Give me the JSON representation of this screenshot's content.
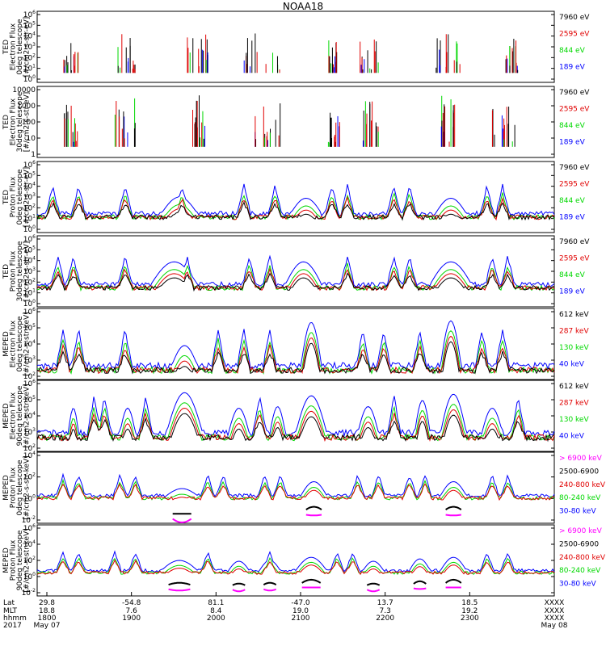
{
  "title": "NOAA18",
  "colors": {
    "black": "#000000",
    "red": "#e00000",
    "green": "#00d800",
    "blue": "#0000ff",
    "magenta": "#ff00ff"
  },
  "chart_data": [
    {
      "type": "line",
      "panel": "ted-electron-0deg",
      "ylabel": [
        "TED",
        "Electron Flux",
        "0deg telescope",
        "[#/cm2-s-str-eV]"
      ],
      "yticks": [
        "10^0",
        "10^1",
        "10^2",
        "10^3",
        "10^4",
        "10^5",
        "10^6"
      ],
      "ylim_log10": [
        0,
        6
      ],
      "legend": [
        {
          "label": "7960 eV",
          "color": "black"
        },
        {
          "label": "2595 eV",
          "color": "red"
        },
        {
          "label": "844 eV",
          "color": "green"
        },
        {
          "label": "189 eV",
          "color": "blue"
        }
      ],
      "style": "bursts",
      "base": 1.0,
      "bursts": [
        [
          0.05,
          0.08,
          2.5
        ],
        [
          0.15,
          0.19,
          3
        ],
        [
          0.29,
          0.33,
          3
        ],
        [
          0.4,
          0.47,
          3
        ],
        [
          0.56,
          0.58,
          2.5
        ],
        [
          0.62,
          0.66,
          2.5
        ],
        [
          0.77,
          0.82,
          3
        ],
        [
          0.9,
          0.93,
          2.5
        ]
      ]
    },
    {
      "type": "line",
      "panel": "ted-electron-30deg",
      "ylabel": [
        "TED",
        "Electron Flux",
        "30deg telescope",
        "[#/cm2-s-str-eV]"
      ],
      "yticks": [
        "1",
        "10",
        "100",
        "1000",
        "10000"
      ],
      "ylim_log10": [
        0,
        4
      ],
      "legend": [
        {
          "label": "7960 eV",
          "color": "black"
        },
        {
          "label": "2595 eV",
          "color": "red"
        },
        {
          "label": "844 eV",
          "color": "green"
        },
        {
          "label": "189 eV",
          "color": "blue"
        }
      ],
      "style": "bursts",
      "base": 0.8,
      "bursts": [
        [
          0.05,
          0.08,
          2
        ],
        [
          0.15,
          0.19,
          2.5
        ],
        [
          0.3,
          0.33,
          2.5
        ],
        [
          0.42,
          0.47,
          2
        ],
        [
          0.56,
          0.59,
          2
        ],
        [
          0.63,
          0.66,
          2
        ],
        [
          0.78,
          0.82,
          2.5
        ],
        [
          0.88,
          0.93,
          2
        ]
      ]
    },
    {
      "type": "line",
      "panel": "ted-proton-0deg",
      "ylabel": [
        "TED",
        "Proton Flux",
        "0deg telescope",
        "[#/cm2-s-str-eV]"
      ],
      "yticks": [
        "10^0",
        "10^1",
        "10^2",
        "10^3",
        "10^4",
        "10^5",
        "10^6"
      ],
      "ylim_log10": [
        0,
        6
      ],
      "legend": [
        {
          "label": "7960 eV",
          "color": "black"
        },
        {
          "label": "2595 eV",
          "color": "red"
        },
        {
          "label": "844 eV",
          "color": "green"
        },
        {
          "label": "189 eV",
          "color": "blue"
        }
      ],
      "style": "proton",
      "base": 1.3,
      "arches": [
        [
          0.24,
          0.31,
          2.7
        ],
        [
          0.49,
          0.55,
          2.6
        ],
        [
          0.77,
          0.83,
          2.6
        ]
      ],
      "spikes": [
        0.03,
        0.08,
        0.17,
        0.28,
        0.4,
        0.46,
        0.57,
        0.6,
        0.69,
        0.72,
        0.87,
        0.9
      ]
    },
    {
      "type": "line",
      "panel": "ted-proton-30deg",
      "ylabel": [
        "TED",
        "Proton Flux",
        "30deg telescope",
        "[#/cm2-s-str-eV]"
      ],
      "yticks": [
        "10^0",
        "10^1",
        "10^2",
        "10^3",
        "10^4",
        "10^5",
        "10^6"
      ],
      "ylim_log10": [
        0,
        6
      ],
      "legend": [
        {
          "label": "7960 eV",
          "color": "black"
        },
        {
          "label": "2595 eV",
          "color": "red"
        },
        {
          "label": "844 eV",
          "color": "green"
        },
        {
          "label": "189 eV",
          "color": "blue"
        }
      ],
      "style": "proton",
      "base": 1.6,
      "arches": [
        [
          0.22,
          0.31,
          3.5
        ],
        [
          0.48,
          0.55,
          3.5
        ],
        [
          0.76,
          0.84,
          3.5
        ]
      ],
      "spikes": [
        0.04,
        0.07,
        0.17,
        0.29,
        0.41,
        0.45,
        0.6,
        0.69,
        0.72,
        0.88,
        0.91
      ]
    },
    {
      "type": "line",
      "panel": "meped-electron-0deg",
      "ylabel": [
        "MEPED",
        "Electron Flux",
        "0deg telescope",
        "[#/cm2-s-str-keV]"
      ],
      "yticks": [
        "10^2",
        "10^3",
        "10^4",
        "10^5",
        "10^6"
      ],
      "ylim_log10": [
        2,
        6.6
      ],
      "legend": [
        {
          "label": "612 keV",
          "color": "black"
        },
        {
          "label": "287 keV",
          "color": "red"
        },
        {
          "label": "130 keV",
          "color": "green"
        },
        {
          "label": "40 keV",
          "color": "blue"
        }
      ],
      "style": "meped_e",
      "base": 2.6,
      "arches": [
        [
          0.26,
          0.31,
          3.9
        ],
        [
          0.51,
          0.55,
          5.4
        ],
        [
          0.78,
          0.82,
          5.5
        ]
      ],
      "spikes": [
        0.05,
        0.08,
        0.17,
        0.35,
        0.4,
        0.45,
        0.63,
        0.67,
        0.74,
        0.86,
        0.9
      ]
    },
    {
      "type": "line",
      "panel": "meped-electron-90deg",
      "ylabel": [
        "MEPED",
        "Electron Flux",
        "90deg telescope",
        "[#/cm2-s-str-keV]"
      ],
      "yticks": [
        "10^2",
        "10^3",
        "10^4",
        "10^5",
        "10^6"
      ],
      "ylim_log10": [
        2,
        6.6
      ],
      "legend": [
        {
          "label": "612 keV",
          "color": "black"
        },
        {
          "label": "287 keV",
          "color": "red"
        },
        {
          "label": "130 keV",
          "color": "green"
        },
        {
          "label": "40 keV",
          "color": "blue"
        }
      ],
      "style": "meped_e",
      "base": 2.9,
      "arches": [
        [
          0.06,
          0.08,
          4.5
        ],
        [
          0.16,
          0.19,
          4.5
        ],
        [
          0.25,
          0.32,
          5.5
        ],
        [
          0.37,
          0.41,
          4.5
        ],
        [
          0.45,
          0.48,
          4.6
        ],
        [
          0.5,
          0.56,
          5.3
        ],
        [
          0.62,
          0.66,
          4.6
        ],
        [
          0.73,
          0.76,
          5
        ],
        [
          0.78,
          0.83,
          5.4
        ],
        [
          0.86,
          0.9,
          4.5
        ]
      ],
      "spikes": [
        0.11,
        0.13,
        0.21,
        0.43,
        0.69,
        0.93
      ]
    },
    {
      "type": "line",
      "panel": "meped-proton-0deg",
      "ylabel": [
        "MEPED",
        "Proton Flux",
        "0deg telescope",
        "[#/cm2-s-str-keV]"
      ],
      "yticks": [
        "10^-2",
        "10^0",
        "10^2",
        "10^4"
      ],
      "ylim_log10": [
        -2.7,
        5.5
      ],
      "legend": [
        {
          "label": "> 6900 keV",
          "color": "magenta"
        },
        {
          "label": "2500-6900",
          "color": "black"
        },
        {
          "label": "240-800 keV",
          "color": "red"
        },
        {
          "label": "80-240 keV",
          "color": "green"
        },
        {
          "label": "30-80 keV",
          "color": "blue"
        }
      ],
      "style": "meped_p",
      "base": 0.2,
      "arches": [
        [
          0.25,
          0.31,
          1
        ],
        [
          0.51,
          0.56,
          1.8
        ],
        [
          0.78,
          0.83,
          1.8
        ]
      ],
      "spikes": [
        0.05,
        0.08,
        0.16,
        0.19,
        0.33,
        0.36,
        0.44,
        0.47,
        0.62,
        0.66,
        0.72,
        0.75,
        0.88,
        0.91
      ]
    },
    {
      "type": "line",
      "panel": "meped-proton-90deg",
      "ylabel": [
        "MEPED",
        "Proton Flux",
        "90deg telescope",
        "[#/cm2-s-str-keV]"
      ],
      "yticks": [
        "10^-2",
        "10^0",
        "10^2",
        "10^4",
        "10^6"
      ],
      "ylim_log10": [
        -2.7,
        6.5
      ],
      "legend": [
        {
          "label": "> 6900 keV",
          "color": "magenta"
        },
        {
          "label": "2500-6900",
          "color": "black"
        },
        {
          "label": "240-800 keV",
          "color": "red"
        },
        {
          "label": "80-240 keV",
          "color": "green"
        },
        {
          "label": "30-80 keV",
          "color": "blue"
        }
      ],
      "style": "meped_p",
      "base": 0.3,
      "arches": [
        [
          0.24,
          0.31,
          1.6
        ],
        [
          0.37,
          0.41,
          1.5
        ],
        [
          0.43,
          0.47,
          1.6
        ],
        [
          0.5,
          0.56,
          2
        ],
        [
          0.63,
          0.67,
          1.5
        ],
        [
          0.72,
          0.76,
          1.8
        ],
        [
          0.78,
          0.83,
          2
        ]
      ],
      "spikes": [
        0.05,
        0.08,
        0.15,
        0.19,
        0.33,
        0.45,
        0.58,
        0.61,
        0.87,
        0.91
      ]
    }
  ],
  "xaxis": {
    "row_labels": [
      "Lat",
      "MLT",
      "hhmm",
      "2017"
    ],
    "ticks": [
      {
        "lat": "29.8",
        "mlt": "18.8",
        "hhmm": "1800",
        "date": "May 07"
      },
      {
        "lat": "-54.8",
        "mlt": "7.6",
        "hhmm": "1900",
        "date": ""
      },
      {
        "lat": "81.1",
        "mlt": "8.4",
        "hhmm": "2000",
        "date": ""
      },
      {
        "lat": "-47.0",
        "mlt": "19.0",
        "hhmm": "2100",
        "date": ""
      },
      {
        "lat": "13.7",
        "mlt": "7.3",
        "hhmm": "2200",
        "date": ""
      },
      {
        "lat": "18.5",
        "mlt": "19.2",
        "hhmm": "2300",
        "date": ""
      },
      {
        "lat": "XXXX",
        "mlt": "XXXX",
        "hhmm": "XXXX",
        "date": "May 08"
      }
    ]
  }
}
